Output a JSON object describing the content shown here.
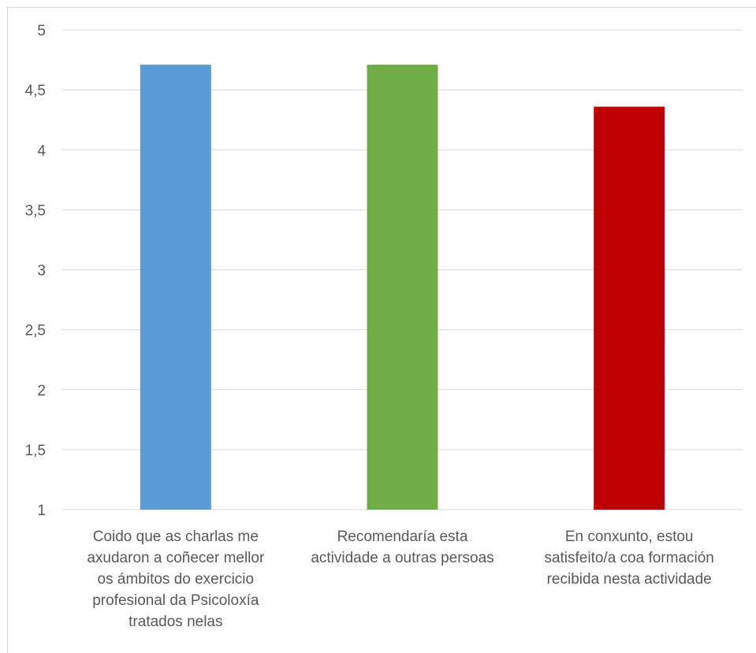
{
  "chart_data": {
    "type": "bar",
    "title": "",
    "xlabel": "",
    "ylabel": "",
    "ylim": [
      1,
      5
    ],
    "yticks": [
      "1",
      "1,5",
      "2",
      "2,5",
      "3",
      "3,5",
      "4",
      "4,5",
      "5"
    ],
    "ytick_values": [
      1,
      1.5,
      2,
      2.5,
      3,
      3.5,
      4,
      4.5,
      5
    ],
    "grid": true,
    "legend": "none",
    "categories": [
      [
        "Coido que as charlas me",
        "axudaron a coñecer mellor",
        "os ámbitos do exercicio",
        "profesional da Psicoloxía",
        "tratados nelas"
      ],
      [
        "Recomendaría esta",
        "actividade a outras persoas"
      ],
      [
        "En conxunto, estou",
        "satisfeito/a coa formación",
        "recibida nesta actividade"
      ]
    ],
    "values": [
      4.71,
      4.71,
      4.36
    ],
    "colors": [
      "#5b9bd5",
      "#70ad47",
      "#c00000"
    ]
  }
}
